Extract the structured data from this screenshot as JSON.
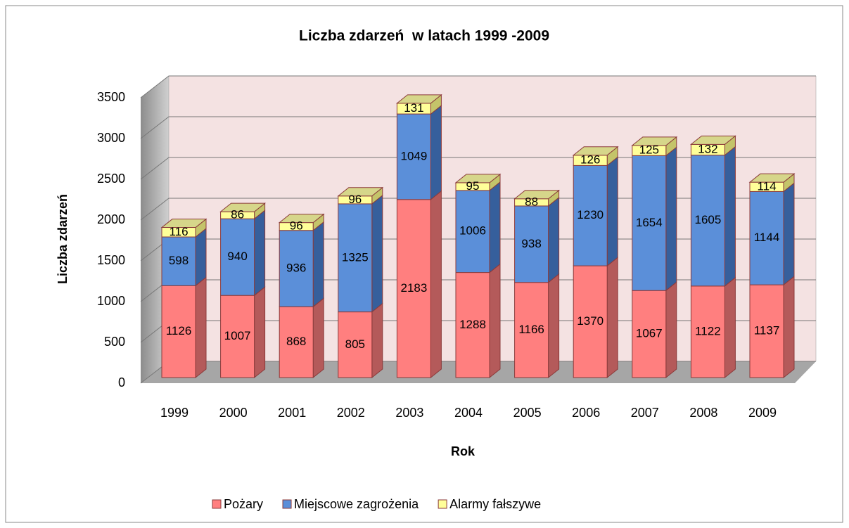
{
  "chart_data": {
    "type": "bar3d_stacked",
    "title": "Liczba zdarzeń  w latach 1999 -2009",
    "x_label": "Rok",
    "y_label": "Liczba zdarzeń",
    "categories": [
      "1999",
      "2000",
      "2001",
      "2002",
      "2003",
      "2004",
      "2005",
      "2006",
      "2007",
      "2008",
      "2009"
    ],
    "series": [
      {
        "name": "Pożary",
        "color": "#ff7f7f",
        "side": "#b45a5a",
        "values": [
          1126,
          1007,
          868,
          805,
          2183,
          1288,
          1166,
          1370,
          1067,
          1122,
          1137
        ]
      },
      {
        "name": "Miejscowe zagrożenia",
        "color": "#5b8fd9",
        "side": "#365f9c",
        "values": [
          598,
          940,
          936,
          1325,
          1049,
          1006,
          938,
          1230,
          1654,
          1605,
          1144
        ]
      },
      {
        "name": "Alarmy fałszywe",
        "color": "#ffff99",
        "side": "#c4c46a",
        "values": [
          116,
          86,
          96,
          96,
          131,
          95,
          88,
          126,
          125,
          132,
          114
        ]
      }
    ],
    "ylim": [
      0,
      3500
    ],
    "yticks": [
      0,
      500,
      1000,
      1500,
      2000,
      2500,
      3000,
      3500
    ],
    "grid": true,
    "legend": "bottom"
  }
}
